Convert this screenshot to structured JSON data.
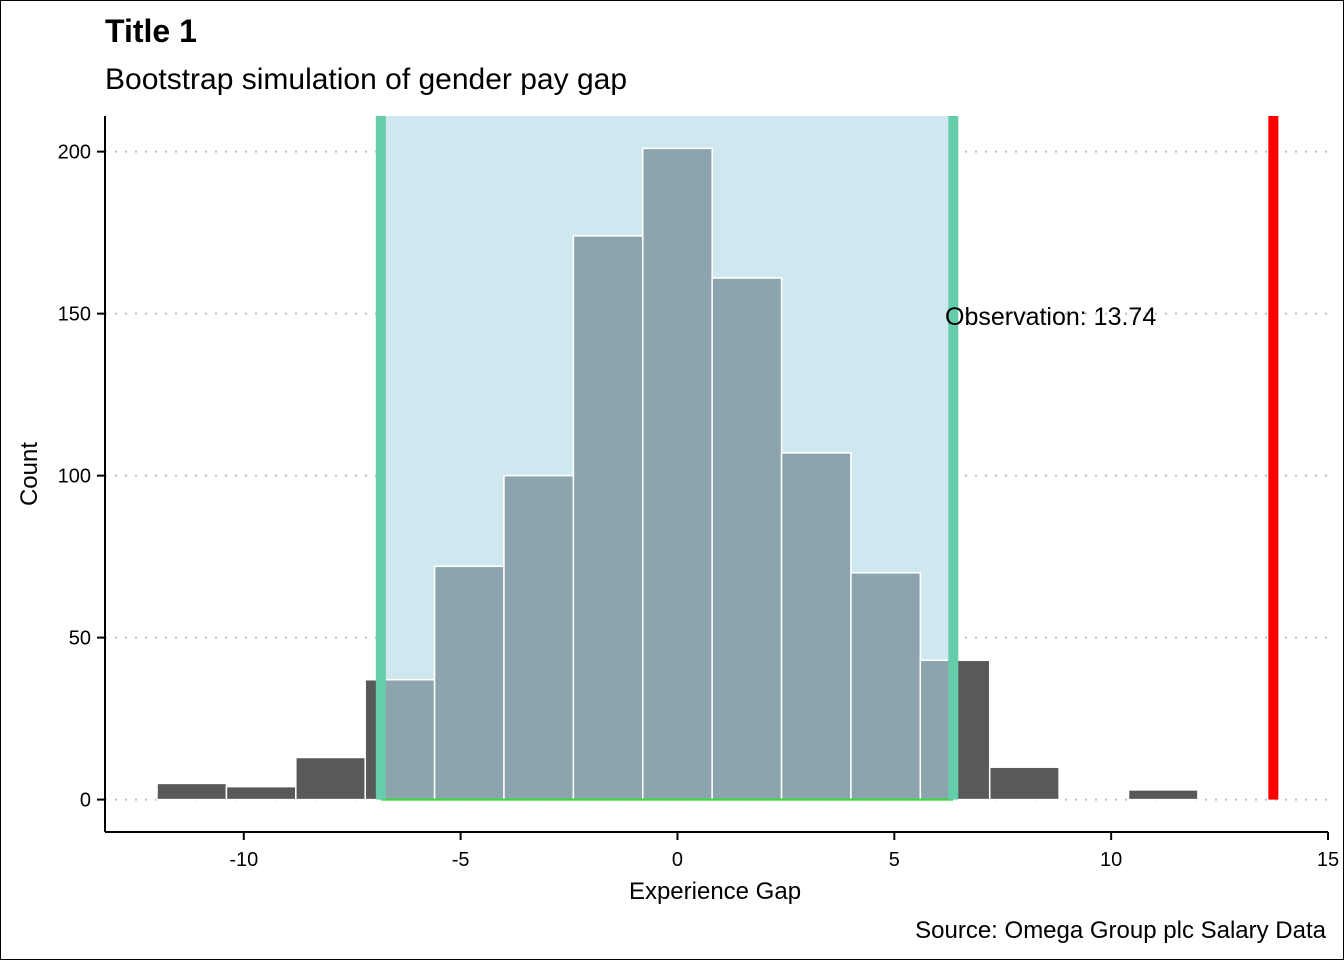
{
  "header": {
    "title": "Title 1",
    "subtitle": "Bootstrap simulation of gender pay gap"
  },
  "caption": "Source: Omega Group plc Salary Data",
  "chart_data": {
    "type": "histogram",
    "xlabel": "Experience Gap",
    "ylabel": "Count",
    "xlim": [
      -13.2,
      15
    ],
    "ylim": [
      -10,
      211
    ],
    "x_ticks": [
      -10,
      -5,
      0,
      5,
      10,
      15
    ],
    "y_ticks": [
      0,
      50,
      100,
      150,
      200
    ],
    "grid": "horizontal-dotted",
    "bin_width": 1.6,
    "bins": [
      {
        "x": -11.2,
        "count": 5
      },
      {
        "x": -9.6,
        "count": 4
      },
      {
        "x": -8.0,
        "count": 13
      },
      {
        "x": -6.4,
        "count": 37
      },
      {
        "x": -4.8,
        "count": 72
      },
      {
        "x": -3.2,
        "count": 100
      },
      {
        "x": -1.6,
        "count": 174
      },
      {
        "x": 0.0,
        "count": 201
      },
      {
        "x": 1.6,
        "count": 161
      },
      {
        "x": 3.2,
        "count": 107
      },
      {
        "x": 4.8,
        "count": 70
      },
      {
        "x": 6.4,
        "count": 43
      },
      {
        "x": 8.0,
        "count": 10
      },
      {
        "x": 9.6,
        "count": 0
      },
      {
        "x": 11.2,
        "count": 3
      }
    ],
    "confidence_interval": [
      -6.84,
      6.36
    ],
    "observation": {
      "value": 13.74,
      "label": "Observation:  13.74"
    },
    "colors": {
      "bar": "#595959",
      "bar_in_ci": "#8CA4AE",
      "ci_fill": "#CFE7EF",
      "ci_edge": "#66CDAA",
      "ci_baseline": "#33DD33",
      "observation_line": "#FF0000",
      "grid": "#BEBEBE"
    }
  }
}
